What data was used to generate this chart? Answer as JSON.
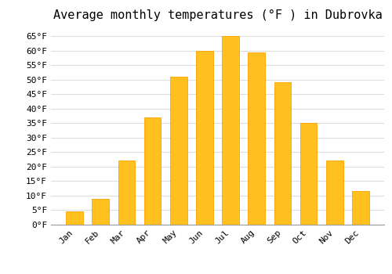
{
  "title": "Average monthly temperatures (°F ) in Dubrovka",
  "months": [
    "Jan",
    "Feb",
    "Mar",
    "Apr",
    "May",
    "Jun",
    "Jul",
    "Aug",
    "Sep",
    "Oct",
    "Nov",
    "Dec"
  ],
  "values": [
    4.5,
    9,
    22,
    37,
    51,
    60,
    65,
    59.5,
    49,
    35,
    22,
    11.5
  ],
  "bar_color": "#FFC020",
  "bar_edge_color": "#FFA000",
  "background_color": "#FFFFFF",
  "grid_color": "#DDDDDD",
  "ylim": [
    0,
    68
  ],
  "yticks": [
    0,
    5,
    10,
    15,
    20,
    25,
    30,
    35,
    40,
    45,
    50,
    55,
    60,
    65
  ],
  "ytick_labels": [
    "0°F",
    "5°F",
    "10°F",
    "15°F",
    "20°F",
    "25°F",
    "30°F",
    "35°F",
    "40°F",
    "45°F",
    "50°F",
    "55°F",
    "60°F",
    "65°F"
  ],
  "title_fontsize": 11,
  "tick_fontsize": 8,
  "font_family": "monospace"
}
